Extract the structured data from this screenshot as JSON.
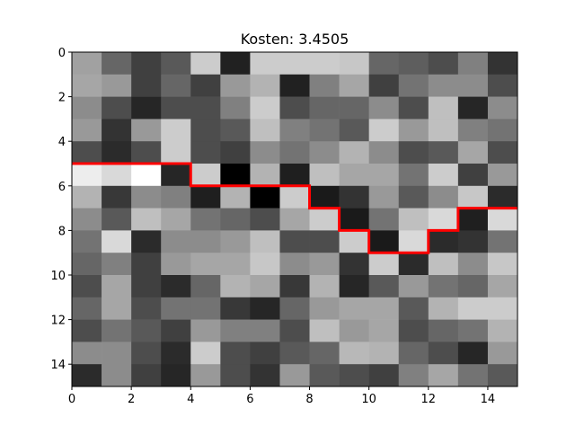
{
  "chart_data": {
    "type": "heatmap",
    "title": "Kosten: 3.4505",
    "colormap": "gray",
    "values": [
      [
        0.63,
        0.4,
        0.25,
        0.35,
        0.8,
        0.13,
        0.8,
        0.8,
        0.8,
        0.78,
        0.4,
        0.37,
        0.3,
        0.5,
        0.2
      ],
      [
        0.65,
        0.6,
        0.25,
        0.4,
        0.25,
        0.6,
        0.7,
        0.13,
        0.5,
        0.65,
        0.25,
        0.45,
        0.55,
        0.55,
        0.3
      ],
      [
        0.55,
        0.3,
        0.15,
        0.3,
        0.3,
        0.5,
        0.8,
        0.3,
        0.4,
        0.4,
        0.55,
        0.3,
        0.75,
        0.15,
        0.55
      ],
      [
        0.6,
        0.2,
        0.6,
        0.8,
        0.3,
        0.35,
        0.75,
        0.5,
        0.45,
        0.35,
        0.8,
        0.6,
        0.75,
        0.5,
        0.45
      ],
      [
        0.3,
        0.17,
        0.3,
        0.8,
        0.3,
        0.25,
        0.55,
        0.45,
        0.55,
        0.7,
        0.55,
        0.3,
        0.35,
        0.65,
        0.3
      ],
      [
        0.93,
        0.85,
        1.0,
        0.15,
        0.8,
        0.0,
        0.7,
        0.12,
        0.75,
        0.65,
        0.65,
        0.45,
        0.8,
        0.25,
        0.6
      ],
      [
        0.7,
        0.22,
        0.55,
        0.5,
        0.12,
        0.7,
        0.0,
        0.8,
        0.1,
        0.2,
        0.6,
        0.35,
        0.55,
        0.78,
        0.17
      ],
      [
        0.55,
        0.35,
        0.75,
        0.65,
        0.45,
        0.4,
        0.3,
        0.65,
        0.8,
        0.1,
        0.45,
        0.75,
        0.85,
        0.12,
        0.85
      ],
      [
        0.45,
        0.85,
        0.17,
        0.55,
        0.55,
        0.6,
        0.75,
        0.3,
        0.3,
        0.8,
        0.1,
        0.85,
        0.17,
        0.2,
        0.45
      ],
      [
        0.4,
        0.5,
        0.25,
        0.6,
        0.65,
        0.65,
        0.78,
        0.55,
        0.6,
        0.2,
        0.8,
        0.17,
        0.75,
        0.55,
        0.78
      ],
      [
        0.3,
        0.65,
        0.25,
        0.17,
        0.4,
        0.7,
        0.65,
        0.22,
        0.7,
        0.15,
        0.35,
        0.6,
        0.45,
        0.4,
        0.65
      ],
      [
        0.4,
        0.65,
        0.3,
        0.45,
        0.45,
        0.22,
        0.15,
        0.4,
        0.6,
        0.65,
        0.65,
        0.35,
        0.7,
        0.8,
        0.8
      ],
      [
        0.3,
        0.45,
        0.35,
        0.25,
        0.6,
        0.5,
        0.5,
        0.3,
        0.75,
        0.6,
        0.65,
        0.3,
        0.4,
        0.45,
        0.7
      ],
      [
        0.55,
        0.55,
        0.3,
        0.17,
        0.8,
        0.3,
        0.25,
        0.35,
        0.4,
        0.72,
        0.7,
        0.4,
        0.3,
        0.15,
        0.6
      ],
      [
        0.17,
        0.55,
        0.25,
        0.15,
        0.6,
        0.3,
        0.2,
        0.6,
        0.35,
        0.3,
        0.25,
        0.5,
        0.65,
        0.45,
        0.35
      ]
    ],
    "line": {
      "color": "#ff0000",
      "x": [
        0,
        4,
        4,
        8,
        8,
        9,
        9,
        10,
        10,
        12,
        12,
        13,
        13,
        15
      ],
      "y": [
        5,
        5,
        6,
        6,
        7,
        7,
        8,
        8,
        9,
        9,
        8,
        8,
        7,
        7
      ]
    },
    "xlim": [
      0,
      15
    ],
    "ylim": [
      15,
      0
    ],
    "xticks": [
      0,
      2,
      4,
      6,
      8,
      10,
      12,
      14
    ],
    "yticks": [
      0,
      2,
      4,
      6,
      8,
      10,
      12,
      14
    ]
  }
}
